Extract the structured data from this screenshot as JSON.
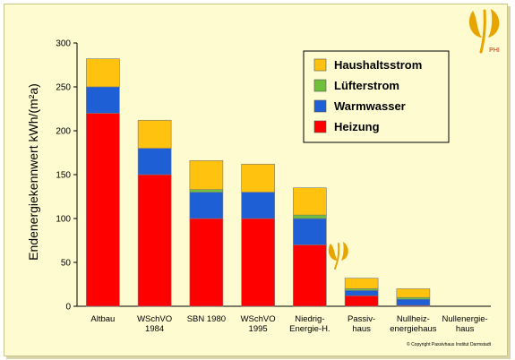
{
  "chart_data": {
    "type": "bar",
    "stacked": true,
    "ylabel": "Endenergiekennwert kWh/(m²a)",
    "ylim": [
      0,
      300
    ],
    "yticks": [
      0,
      50,
      100,
      150,
      200,
      250,
      300
    ],
    "grid": false,
    "legend_position": "top-right",
    "categories": [
      [
        "Altbau"
      ],
      [
        "WSchVO",
        "1984"
      ],
      [
        "SBN 1980"
      ],
      [
        "WSchVO",
        "1995"
      ],
      [
        "Niedrig-",
        "Energie-H."
      ],
      [
        "Passiv-",
        "haus"
      ],
      [
        "Nullheiz-",
        "energiehaus"
      ],
      [
        "Nullenergie-",
        "haus"
      ]
    ],
    "series": [
      {
        "name": "Heizung",
        "color": "#ff0000",
        "values": [
          220,
          150,
          100,
          100,
          70,
          12,
          1,
          0
        ]
      },
      {
        "name": "Warmwasser",
        "color": "#1f5fd6",
        "values": [
          30,
          30,
          30,
          30,
          30,
          6,
          7,
          0
        ]
      },
      {
        "name": "Lüfterstrom",
        "color": "#6fbf3a",
        "values": [
          0,
          0,
          3,
          0,
          4,
          2,
          2,
          0
        ]
      },
      {
        "name": "Haushaltsstrom",
        "color": "#ffc20e",
        "values": [
          32,
          32,
          33,
          32,
          31,
          12,
          10,
          0
        ]
      }
    ],
    "legend_order": [
      "Haushaltsstrom",
      "Lüfterstrom",
      "Warmwasser",
      "Heizung"
    ]
  },
  "logo": {
    "text": "PHI",
    "color": "#e8a400",
    "icon": "phi-leaf-icon"
  },
  "copyright": "© Copyright Passivhaus Institut Darmstadt"
}
